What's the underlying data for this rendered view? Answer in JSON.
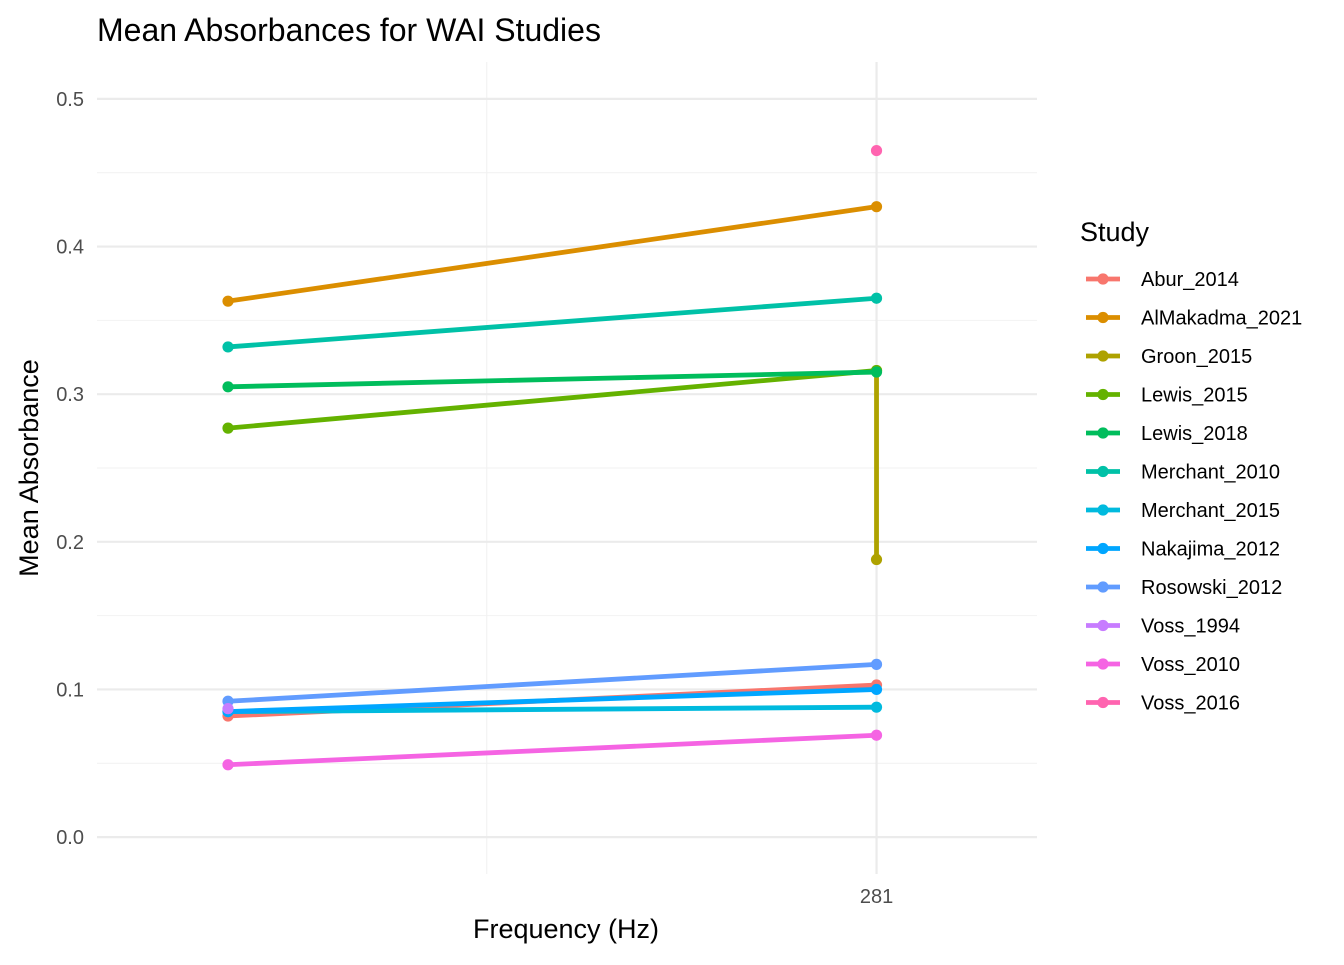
{
  "chart_data": {
    "type": "line",
    "title": "Mean Absorbances for WAI Studies",
    "xlabel": "Frequency (Hz)",
    "ylabel": "Mean Absorbance",
    "x_ticks": [
      {
        "value": 281,
        "label": "281"
      }
    ],
    "y_ticks": [
      {
        "value": 0.0,
        "label": "0.0"
      },
      {
        "value": 0.1,
        "label": "0.1"
      },
      {
        "value": 0.2,
        "label": "0.2"
      },
      {
        "value": 0.3,
        "label": "0.3"
      },
      {
        "value": 0.4,
        "label": "0.4"
      },
      {
        "value": 0.5,
        "label": "0.5"
      }
    ],
    "x_scale": "log10",
    "xlim": [
      198,
      302
    ],
    "ylim": [
      -0.025,
      0.525
    ],
    "grid": true,
    "legend": {
      "title": "Study",
      "position": "right"
    },
    "series": [
      {
        "name": "Abur_2014",
        "color": "#F8766D",
        "points": [
          [
            210,
            0.082
          ],
          [
            281,
            0.103
          ]
        ]
      },
      {
        "name": "AlMakadma_2021",
        "color": "#DB8E00",
        "points": [
          [
            210,
            0.363
          ],
          [
            281,
            0.427
          ]
        ]
      },
      {
        "name": "Groon_2015",
        "color": "#AEA200",
        "points": [
          [
            281,
            0.316
          ],
          [
            281,
            0.188
          ]
        ]
      },
      {
        "name": "Lewis_2015",
        "color": "#64B200",
        "points": [
          [
            210,
            0.277
          ],
          [
            281,
            0.316
          ]
        ]
      },
      {
        "name": "Lewis_2018",
        "color": "#00BD5C",
        "points": [
          [
            210,
            0.305
          ],
          [
            281,
            0.315
          ]
        ]
      },
      {
        "name": "Merchant_2010",
        "color": "#00C1A7",
        "points": [
          [
            210,
            0.332
          ],
          [
            281,
            0.365
          ]
        ]
      },
      {
        "name": "Merchant_2015",
        "color": "#00BADE",
        "points": [
          [
            210,
            0.085
          ],
          [
            281,
            0.088
          ]
        ]
      },
      {
        "name": "Nakajima_2012",
        "color": "#00A6FF",
        "points": [
          [
            210,
            0.085
          ],
          [
            281,
            0.1
          ]
        ]
      },
      {
        "name": "Rosowski_2012",
        "color": "#619CFF",
        "points": [
          [
            210,
            0.092
          ],
          [
            281,
            0.117
          ]
        ]
      },
      {
        "name": "Voss_1994",
        "color": "#C77CFF",
        "points": [
          [
            210,
            0.087
          ]
        ]
      },
      {
        "name": "Voss_2010",
        "color": "#F564E3",
        "points": [
          [
            210,
            0.049
          ],
          [
            281,
            0.069
          ]
        ]
      },
      {
        "name": "Voss_2016",
        "color": "#FF64B0",
        "points": [
          [
            281,
            0.465
          ]
        ]
      }
    ]
  }
}
